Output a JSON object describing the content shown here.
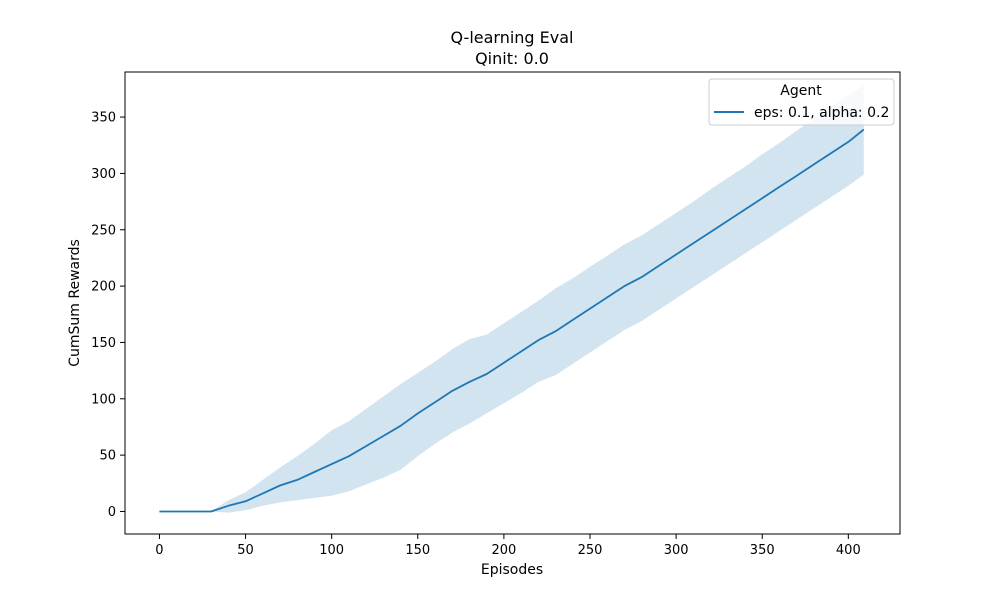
{
  "chart_data": {
    "type": "line",
    "title": "Q-learning Eval",
    "subtitle": "Qinit: 0.0",
    "xlabel": "Episodes",
    "ylabel": "CumSum Rewards",
    "xlim": [
      -20,
      430
    ],
    "ylim": [
      -20,
      390
    ],
    "xticks": [
      0,
      50,
      100,
      150,
      200,
      250,
      300,
      350,
      400
    ],
    "yticks": [
      0,
      50,
      100,
      150,
      200,
      250,
      300,
      350
    ],
    "grid": false,
    "legend": {
      "title": "Agent",
      "placement": "top-right"
    },
    "series": [
      {
        "name": "eps: 0.1, alpha: 0.2",
        "color": "#1f77b4",
        "band_color": "#1f77b4",
        "x": [
          0,
          10,
          20,
          30,
          40,
          50,
          60,
          70,
          80,
          90,
          100,
          110,
          120,
          130,
          140,
          150,
          160,
          170,
          180,
          190,
          200,
          210,
          220,
          230,
          240,
          250,
          260,
          270,
          280,
          290,
          300,
          310,
          320,
          330,
          340,
          350,
          360,
          370,
          380,
          390,
          400,
          409
        ],
        "y": [
          0,
          0,
          0,
          0,
          5,
          9,
          16,
          23,
          28,
          35,
          42,
          49,
          58,
          67,
          76,
          87,
          97,
          107,
          115,
          122,
          132,
          142,
          152,
          160,
          170,
          180,
          190,
          200,
          208,
          218,
          228,
          238,
          248,
          258,
          268,
          278,
          288,
          298,
          308,
          318,
          328,
          339
        ],
        "upper": [
          0,
          0,
          0,
          0,
          10,
          17,
          28,
          39,
          49,
          60,
          72,
          80,
          91,
          102,
          113,
          123,
          133,
          144,
          153,
          157,
          167,
          177,
          187,
          198,
          207,
          217,
          227,
          237,
          245,
          255,
          265,
          275,
          286,
          296,
          306,
          317,
          327,
          338,
          348,
          359,
          369,
          378
        ],
        "lower": [
          0,
          0,
          0,
          0,
          -1,
          1,
          5,
          8,
          10,
          12,
          14,
          18,
          24,
          30,
          37,
          49,
          60,
          70,
          78,
          87,
          96,
          105,
          115,
          121,
          131,
          141,
          151,
          161,
          169,
          179,
          189,
          199,
          209,
          219,
          229,
          239,
          249,
          259,
          269,
          279,
          289,
          299
        ]
      }
    ]
  }
}
